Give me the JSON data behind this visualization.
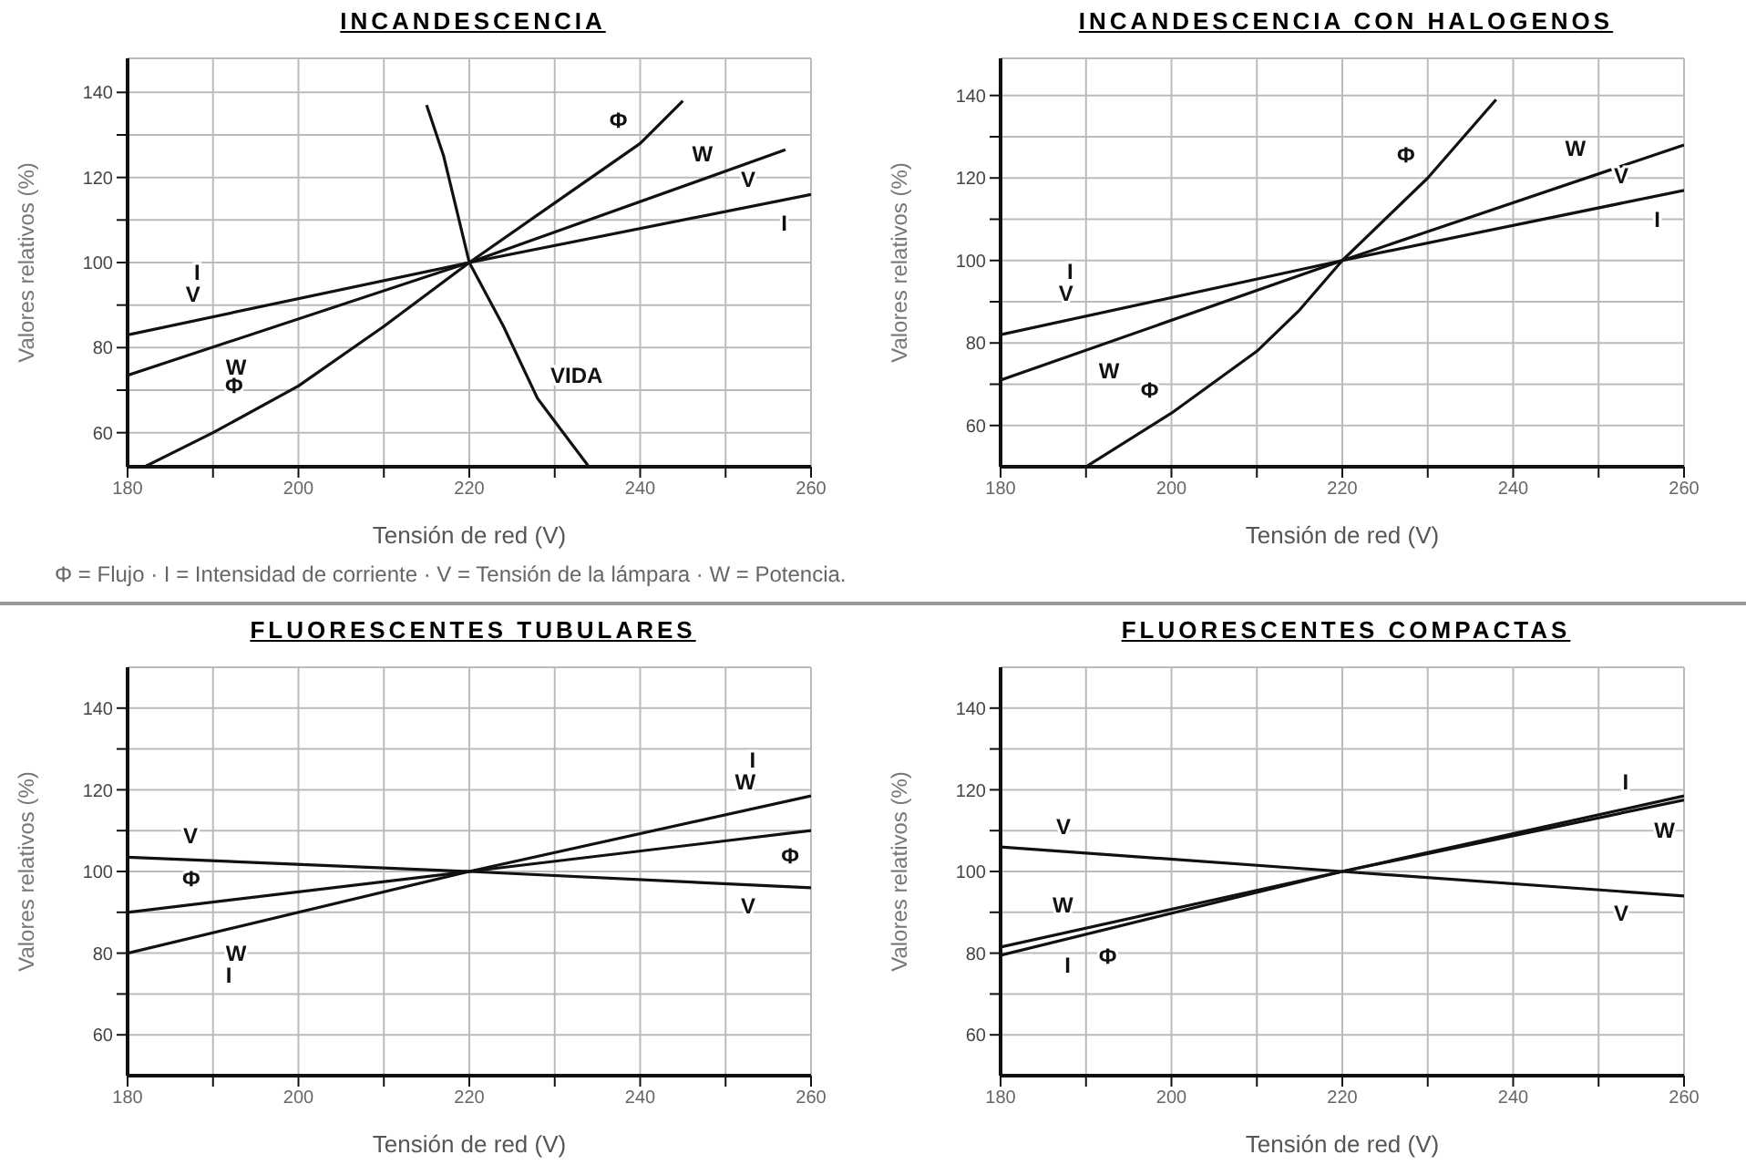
{
  "chart_data": [
    {
      "type": "line",
      "title": "INCANDESCENCIA",
      "xlabel": "Tensión de red (V)",
      "ylabel": "Valores relativos (%)",
      "xlim": [
        180,
        260
      ],
      "ylim": [
        52,
        148
      ],
      "xticks": [
        180,
        {
          "value": 190,
          "label": null
        },
        200,
        {
          "value": 210,
          "label": null
        },
        220,
        {
          "value": 230,
          "label": null
        },
        240,
        {
          "value": 250,
          "label": null
        },
        260
      ],
      "yticks": [
        {
          "value": 60,
          "label": "60"
        },
        {
          "value": 70,
          "label": null
        },
        80,
        {
          "value": 90,
          "label": null
        },
        100,
        {
          "value": 110,
          "label": null
        },
        120,
        {
          "value": 130,
          "label": null
        },
        140
      ],
      "grid": true,
      "legend": false,
      "marker": "none",
      "line_style": "solid",
      "series": [
        {
          "color": "#111111",
          "x": [
            180,
            220,
            260
          ],
          "values": [
            83,
            100,
            116
          ]
        },
        {
          "color": "#111111",
          "x": [
            180,
            220,
            257
          ],
          "values": [
            73.5,
            100,
            126.5
          ]
        },
        {
          "color": "#111111",
          "x": [
            182,
            190,
            200,
            210,
            220,
            230,
            240,
            245
          ],
          "values": [
            52,
            60,
            71,
            85,
            100,
            114,
            128,
            138
          ]
        },
        {
          "color": "#111111",
          "x": [
            215,
            217,
            220,
            224,
            228,
            231,
            234
          ],
          "values": [
            137,
            125,
            100,
            85,
            68,
            60,
            52
          ]
        }
      ],
      "annotations": [
        {
          "text": "Φ",
          "x": 240,
          "y": 128
        },
        {
          "text": "W",
          "x": 250,
          "y": 119.9
        },
        {
          "text": "I",
          "x": 255,
          "y": 113.9
        },
        {
          "text": "V",
          "x": 255,
          "y": 113.9
        },
        {
          "text": "V",
          "x": 190,
          "y": 87.1
        },
        {
          "text": "I",
          "x": 190,
          "y": 87.1
        },
        {
          "text": "W",
          "x": 190,
          "y": 80.1
        },
        {
          "text": "Φ",
          "x": 195,
          "y": 65.5
        },
        {
          "text": "VIDA",
          "x": 228,
          "y": 68
        },
        "Φ = Flujo  ·  I = Intensidad de corriente  ·  V = Tensión de la lámpara  ·  W = Potencia."
      ]
    },
    {
      "type": "line",
      "title": "INCANDESCENCIA CON HALOGENOS",
      "xlabel": "Tensión de red (V)",
      "ylabel": "Valores relativos (%)",
      "xlim": [
        180,
        260
      ],
      "ylim": [
        50,
        149
      ],
      "xticks": [
        180,
        {
          "value": 190,
          "label": null
        },
        200,
        {
          "value": 210,
          "label": null
        },
        220,
        {
          "value": 230,
          "label": null
        },
        240,
        {
          "value": 250,
          "label": null
        },
        260
      ],
      "yticks": [
        60,
        {
          "value": 70,
          "label": null
        },
        80,
        {
          "value": 90,
          "label": null
        },
        100,
        {
          "value": 110,
          "label": null
        },
        120,
        {
          "value": 130,
          "label": null
        },
        140
      ],
      "grid": true,
      "legend": false,
      "marker": "none",
      "line_style": "solid",
      "series": [
        {
          "color": "#111111",
          "x": [
            180,
            220,
            260
          ],
          "values": [
            82,
            100,
            117
          ]
        },
        {
          "color": "#111111",
          "x": [
            180,
            220,
            260
          ],
          "values": [
            71,
            100,
            128
          ]
        },
        {
          "color": "#111111",
          "x": [
            190,
            200,
            210,
            215,
            220,
            225,
            230,
            238
          ],
          "values": [
            50,
            63,
            78,
            88,
            100,
            110,
            120,
            139
          ]
        }
      ],
      "annotations": [
        {
          "text": "Φ",
          "x": 230,
          "y": 120
        },
        {
          "text": "W",
          "x": 250,
          "y": 121.4
        },
        {
          "text": "I",
          "x": 255,
          "y": 114.8
        },
        {
          "text": "V",
          "x": 255,
          "y": 114.8
        },
        {
          "text": "V",
          "x": 190,
          "y": 86.4
        },
        {
          "text": "I",
          "x": 190,
          "y": 86.4
        },
        {
          "text": "W",
          "x": 190,
          "y": 78.1
        },
        {
          "text": "Φ",
          "x": 200,
          "y": 63
        }
      ]
    },
    {
      "type": "line",
      "title": "FLUORESCENTES TUBULARES",
      "xlabel": "Tensión de red (V)",
      "ylabel": "Valores relativos (%)",
      "xlim": [
        180,
        260
      ],
      "ylim": [
        50,
        150
      ],
      "xticks": [
        180,
        {
          "value": 190,
          "label": null
        },
        200,
        {
          "value": 210,
          "label": null
        },
        220,
        {
          "value": 230,
          "label": null
        },
        240,
        {
          "value": 250,
          "label": null
        },
        260
      ],
      "yticks": [
        60,
        {
          "value": 70,
          "label": null
        },
        80,
        {
          "value": 90,
          "label": null
        },
        100,
        {
          "value": 110,
          "label": null
        },
        120,
        {
          "value": 130,
          "label": null
        },
        140
      ],
      "grid": true,
      "legend": false,
      "marker": "none",
      "line_style": "solid",
      "series": [
        {
          "color": "#111111",
          "x": [
            180,
            220,
            260
          ],
          "values": [
            80,
            100,
            118.5
          ]
        },
        {
          "color": "#111111",
          "x": [
            180,
            220,
            260
          ],
          "values": [
            90,
            100,
            110
          ]
        },
        {
          "color": "#111111",
          "x": [
            180,
            220,
            260
          ],
          "values": [
            103.5,
            100,
            96
          ]
        }
      ],
      "annotations": [
        {
          "text": "W",
          "x": 255,
          "y": 116.1
        },
        {
          "text": "I",
          "x": 255,
          "y": 116.1
        },
        {
          "text": "Φ",
          "x": 255,
          "y": 108.75
        },
        {
          "text": "V",
          "x": 255,
          "y": 96.6
        },
        {
          "text": "V",
          "x": 185,
          "y": 103
        },
        {
          "text": "Φ",
          "x": 190,
          "y": 92.5
        },
        {
          "text": "W",
          "x": 190,
          "y": 84.8
        },
        {
          "text": "I",
          "x": 190,
          "y": 84.8
        }
      ]
    },
    {
      "type": "line",
      "title": "FLUORESCENTES COMPACTAS",
      "xlabel": "Tensión de red (V)",
      "ylabel": "Valores relativos (%)",
      "xlim": [
        180,
        260
      ],
      "ylim": [
        50,
        150
      ],
      "xticks": [
        180,
        {
          "value": 190,
          "label": null
        },
        200,
        {
          "value": 210,
          "label": null
        },
        220,
        {
          "value": 230,
          "label": null
        },
        240,
        {
          "value": 250,
          "label": null
        },
        260
      ],
      "yticks": [
        60,
        {
          "value": 70,
          "label": null
        },
        80,
        {
          "value": 90,
          "label": null
        },
        100,
        {
          "value": 110,
          "label": null
        },
        120,
        {
          "value": 130,
          "label": null
        },
        140
      ],
      "grid": true,
      "legend": false,
      "marker": "none",
      "line_style": "solid",
      "series": [
        {
          "color": "#111111",
          "x": [
            180,
            220,
            260
          ],
          "values": [
            81.5,
            100,
            118.5
          ]
        },
        {
          "color": "#111111",
          "x": [
            180,
            220,
            260
          ],
          "values": [
            79.5,
            100,
            117.5
          ]
        },
        {
          "color": "#111111",
          "x": [
            180,
            220,
            260
          ],
          "values": [
            106,
            100,
            94
          ]
        }
      ],
      "annotations": [
        {
          "text": "I",
          "x": 255,
          "y": 116.1
        },
        {
          "text": "W",
          "x": 255,
          "y": 115.1
        },
        {
          "text": "V",
          "x": 255,
          "y": 94.75
        },
        {
          "text": "V",
          "x": 185,
          "y": 105.25
        },
        {
          "text": "W",
          "x": 190,
          "y": 86.1
        },
        {
          "text": "Φ",
          "x": 190,
          "y": 84.25
        },
        {
          "text": "I",
          "x": 186,
          "y": 81.9
        }
      ]
    }
  ]
}
